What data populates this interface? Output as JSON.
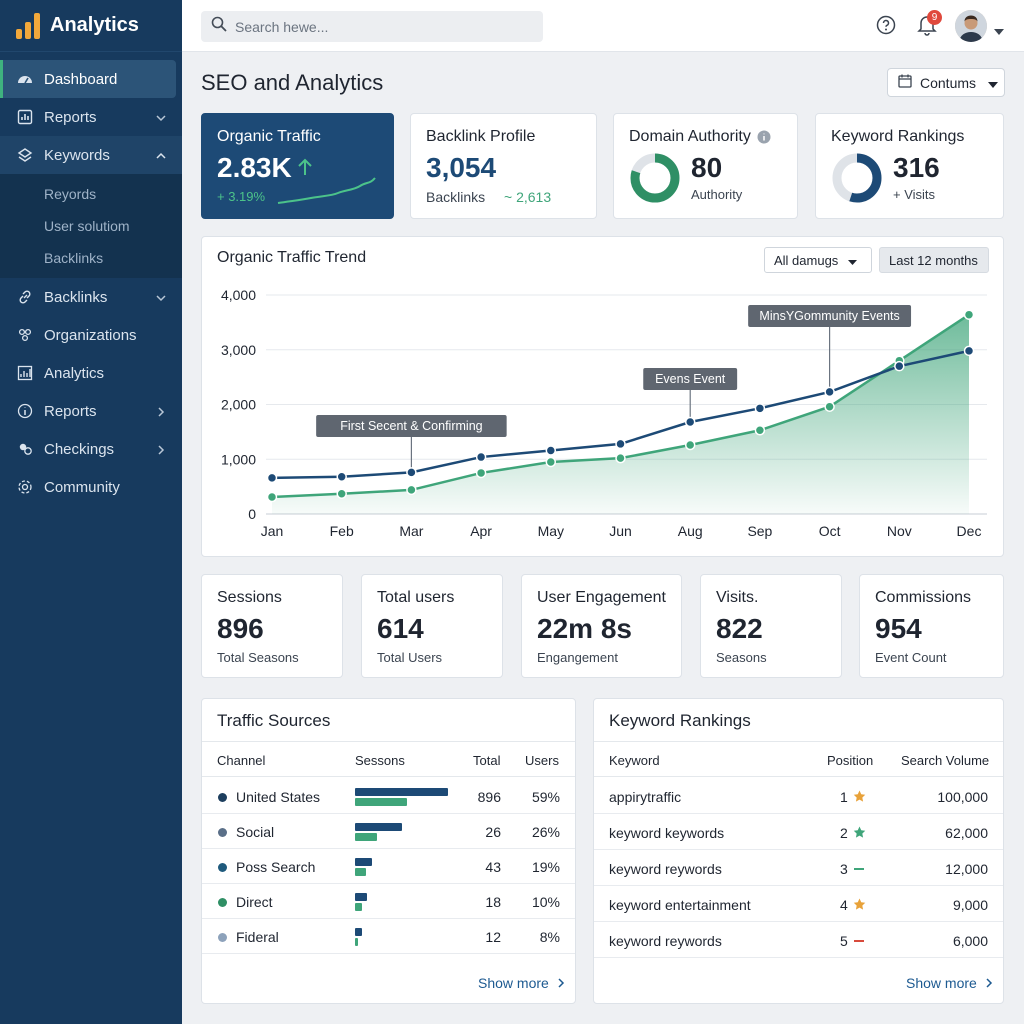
{
  "app": {
    "title": "Analytics"
  },
  "sidebar": {
    "items": [
      {
        "label": "Dashboard",
        "icon": "dashboard-icon"
      },
      {
        "label": "Reports",
        "icon": "reports-icon"
      },
      {
        "label": "Keywords",
        "icon": "keywords-icon",
        "children": [
          "Reyords",
          "User solutiom",
          "Backlinks"
        ]
      },
      {
        "label": "Backlinks",
        "icon": "link-icon"
      },
      {
        "label": "Organizations",
        "icon": "organizations-icon"
      },
      {
        "label": "Analytics",
        "icon": "analytics-icon"
      },
      {
        "label": "Reports",
        "icon": "reports-info-icon"
      },
      {
        "label": "Checkings",
        "icon": "checkings-icon"
      },
      {
        "label": "Community",
        "icon": "community-icon"
      }
    ]
  },
  "topbar": {
    "search_placeholder": "Search hewe...",
    "notification_count": "9"
  },
  "page": {
    "title": "SEO and Analytics",
    "date_button": "Contums"
  },
  "kpis": {
    "organic": {
      "title": "Organic Traffic",
      "value": "2.83K",
      "change": "+ 3.19%"
    },
    "backlinks": {
      "title": "Backlink Profile",
      "value": "3,054",
      "sub_label": "Backlinks",
      "sub_value": "~ 2,613"
    },
    "authority": {
      "title": "Domain Authority",
      "value": "80",
      "sub": "Authority",
      "ring_percent": 80
    },
    "rankings": {
      "title": "Keyword Rankings",
      "value": "316",
      "sub": "+ Visits",
      "ring_percent": 55
    }
  },
  "trend": {
    "title": "Organic Traffic Trend",
    "filter": "All damugs",
    "range": "Last 12 months"
  },
  "chart_data": {
    "type": "line",
    "title": "Organic Traffic Trend",
    "categories": [
      "Jan",
      "Feb",
      "Mar",
      "Apr",
      "May",
      "Jun",
      "Aug",
      "Sep",
      "Oct",
      "Nov",
      "Dec"
    ],
    "ylim": [
      0,
      4000
    ],
    "yticks": [
      "0",
      "1,000",
      "2,000",
      "3,000",
      "4,000"
    ],
    "grid": true,
    "series": [
      {
        "color": "#1d4a76",
        "values": [
          660,
          680,
          760,
          1040,
          1160,
          1280,
          1680,
          1930,
          2230,
          2700,
          2980
        ]
      },
      {
        "color": "#3fa57a",
        "area": true,
        "values": [
          310,
          370,
          440,
          750,
          950,
          1020,
          1260,
          1530,
          1960,
          2800,
          3640
        ]
      }
    ],
    "annotations": [
      {
        "label": "First Secent & Confirming",
        "x": "Mar"
      },
      {
        "label": "Evens Event",
        "x": "Aug"
      },
      {
        "label": "MinsYGommunity Events",
        "x": "Oct"
      }
    ]
  },
  "metrics": [
    {
      "title": "Sessions",
      "value": "896",
      "sub": "Total Seasons"
    },
    {
      "title": "Total users",
      "value": "614",
      "sub": "Total Users"
    },
    {
      "title": "User Engagement",
      "value": "22m 8s",
      "sub": "Engangement"
    },
    {
      "title": "Visits.",
      "value": "822",
      "sub": "Seasons"
    },
    {
      "title": "Commissions",
      "value": "954",
      "sub": "Event Count"
    }
  ],
  "traffic_sources": {
    "title": "Traffic Sources",
    "headers": {
      "channel": "Channel",
      "sessions": "Sessons",
      "total": "Total",
      "users": "Users"
    },
    "rows": [
      {
        "channel": "United States",
        "color": "#1d3e5e",
        "total": "896",
        "users": "59%",
        "bar_dark": 1.0,
        "bar_green": 0.56
      },
      {
        "channel": "Social",
        "color": "#5a6f88",
        "total": "26",
        "users": "26%",
        "bar_dark": 0.5,
        "bar_green": 0.24
      },
      {
        "channel": "Poss Search",
        "color": "#1f5a7d",
        "total": "43",
        "users": "19%",
        "bar_dark": 0.18,
        "bar_green": 0.12
      },
      {
        "channel": "Direct",
        "color": "#2f8f65",
        "total": "18",
        "users": "10%",
        "bar_dark": 0.13,
        "bar_green": 0.07
      },
      {
        "channel": "Fideral",
        "color": "#8da2bb",
        "total": "12",
        "users": "8%",
        "bar_dark": 0.07,
        "bar_green": 0.03
      }
    ],
    "show_more": "Show more"
  },
  "keyword_rankings": {
    "title": "Keyword Rankings",
    "headers": {
      "keyword": "Keyword",
      "position": "Position",
      "volume": "Search Volume"
    },
    "rows": [
      {
        "keyword": "appirytraffic",
        "position": "1",
        "marker": "star-orange-icon",
        "volume": "100,000"
      },
      {
        "keyword": "keyword keywords",
        "position": "2",
        "marker": "star-green-icon",
        "volume": "62,000"
      },
      {
        "keyword": "keyword reywords",
        "position": "3",
        "marker": "dash-green-icon",
        "volume": "12,000"
      },
      {
        "keyword": "keyword entertainment",
        "position": "4",
        "marker": "star-orange-icon",
        "volume": "9,000"
      },
      {
        "keyword": "keyword reywords",
        "position": "5",
        "marker": "dash-red-icon",
        "volume": "6,000"
      }
    ],
    "show_more": "Show more"
  },
  "colors": {
    "sidebar": "#173a5e",
    "accent_green": "#3fa57a",
    "accent_navy": "#1d4a76",
    "star_orange": "#e8a23a",
    "dash_red": "#d84a3c"
  }
}
